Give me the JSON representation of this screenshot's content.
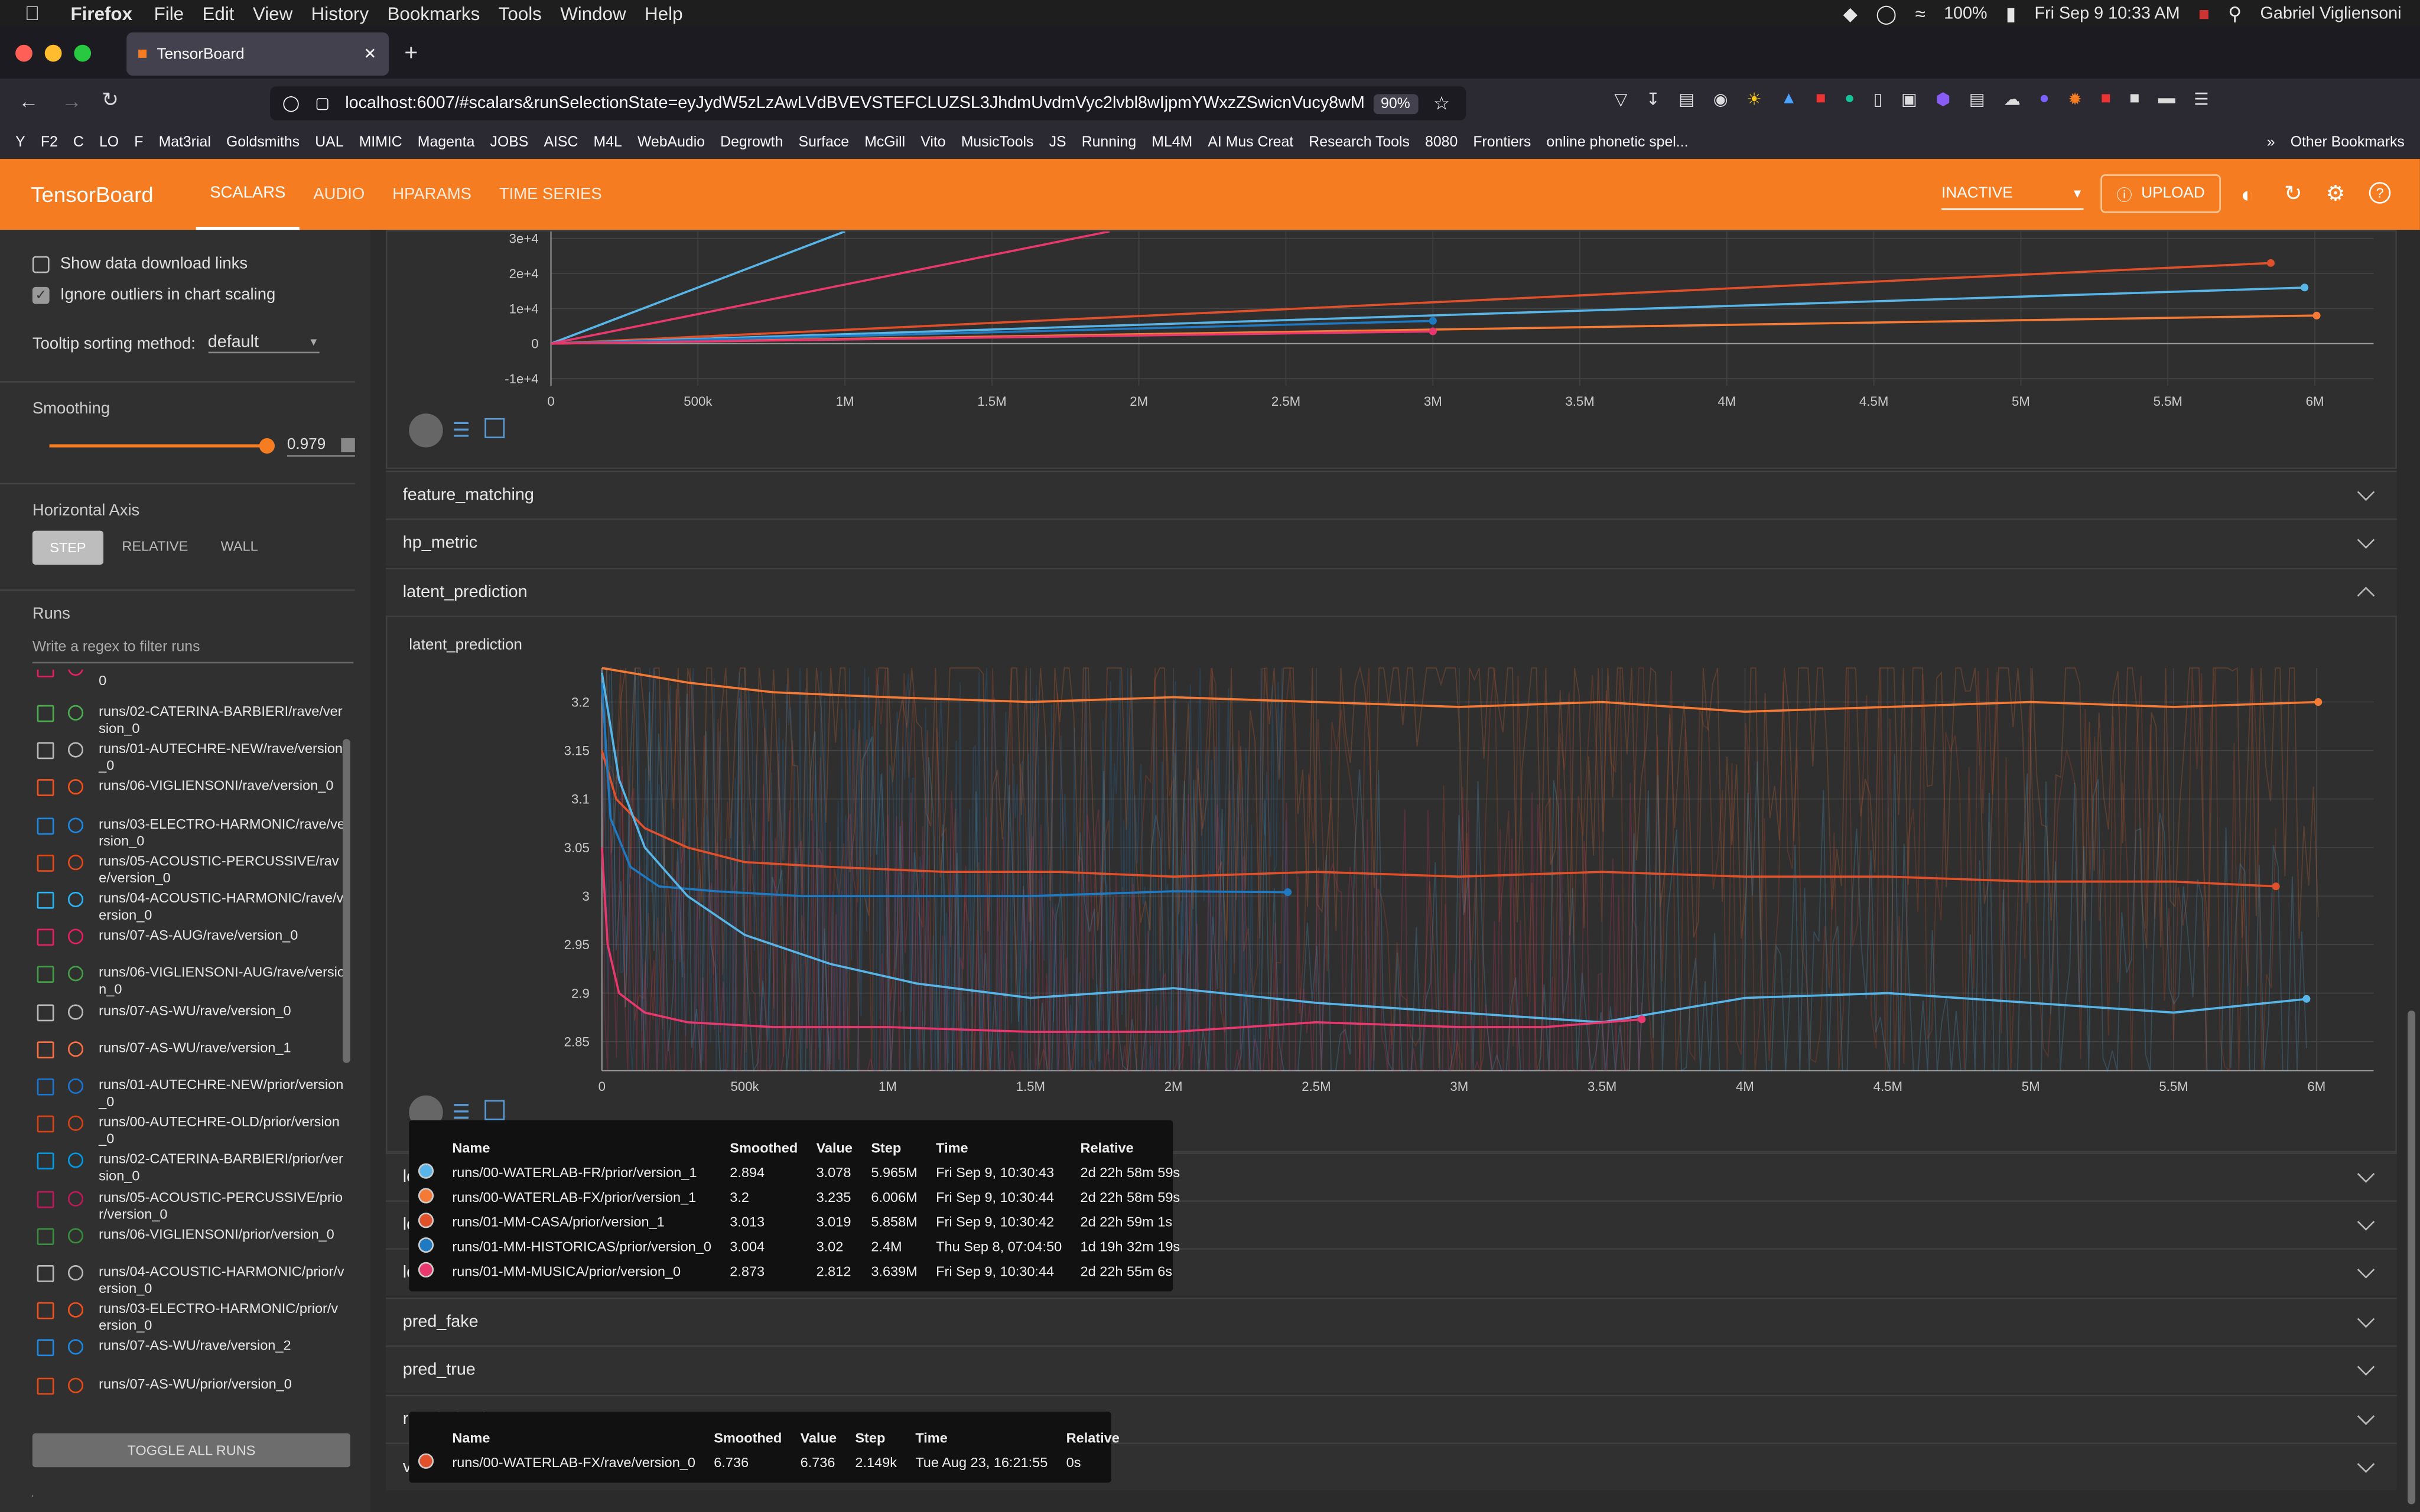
{
  "menubar": {
    "app": "Firefox",
    "items": [
      "File",
      "Edit",
      "View",
      "History",
      "Bookmarks",
      "Tools",
      "Window",
      "Help"
    ],
    "battery": "100%",
    "datetime": "Fri Sep 9  10:33 AM",
    "user": "Gabriel Vigliensoni"
  },
  "browser": {
    "tab_title": "TensorBoard",
    "url": "localhost:6007/#scalars&runSelectionState=eyJydW5zLzAwLVdBVEVSTEFCLUZSL3JhdmUvdmVyc2lvbl8wIjpmYWxzZSwicnVucy8wMC",
    "zoom": "90%",
    "bookmarks": [
      "Y",
      "F2",
      "C",
      "LO",
      "F",
      "Mat3rial",
      "Goldsmiths",
      "UAL",
      "MIMIC",
      "Magenta",
      "JOBS",
      "AISC",
      "M4L",
      "WebAudio",
      "Degrowth",
      "Surface",
      "McGill",
      "Vito",
      "MusicTools",
      "JS",
      "Running",
      "ML4M",
      "AI Mus Creat",
      "Research Tools",
      "8080",
      "Frontiers",
      "online phonetic spel...",
      "Other Bookmarks"
    ]
  },
  "tb": {
    "title": "TensorBoard",
    "tabs": [
      "SCALARS",
      "AUDIO",
      "HPARAMS",
      "TIME SERIES"
    ],
    "status": "INACTIVE",
    "upload": "UPLOAD"
  },
  "sidebar": {
    "show_download": "Show data download links",
    "ignore_outliers": "Ignore outliers in chart scaling",
    "tooltip_label": "Tooltip sorting method:",
    "tooltip_value": "default",
    "smoothing_label": "Smoothing",
    "smoothing_value": "0.979",
    "smoothing_level": 0.979,
    "haxis_label": "Horizontal Axis",
    "haxis_options": [
      "STEP",
      "RELATIVE",
      "WALL"
    ],
    "runs_label": "Runs",
    "runs_placeholder": "Write a regex to filter runs",
    "runs_cutoff": "0",
    "runs": [
      {
        "name": "runs/02-CATERINA-BARBIERI/rave/version_0",
        "color": "#4caf50"
      },
      {
        "name": "runs/01-AUTECHRE-NEW/rave/version_0",
        "color": "#bbbbbb"
      },
      {
        "name": "runs/06-VIGLIENSONI/rave/version_0",
        "color": "#f4511e"
      },
      {
        "name": "runs/03-ELECTRO-HARMONIC/rave/version_0",
        "color": "#1e88e5"
      },
      {
        "name": "runs/05-ACOUSTIC-PERCUSSIVE/rave/version_0",
        "color": "#e64a19"
      },
      {
        "name": "runs/04-ACOUSTIC-HARMONIC/rave/version_0",
        "color": "#29b6f6"
      },
      {
        "name": "runs/07-AS-AUG/rave/version_0",
        "color": "#e91e63"
      },
      {
        "name": "runs/06-VIGLIENSONI-AUG/rave/version_0",
        "color": "#43a047"
      },
      {
        "name": "runs/07-AS-WU/rave/version_0",
        "color": "#bbbbbb"
      },
      {
        "name": "runs/07-AS-WU/rave/version_1",
        "color": "#ff7043"
      },
      {
        "name": "runs/01-AUTECHRE-NEW/prior/version_0",
        "color": "#1976d2"
      },
      {
        "name": "runs/00-AUTECHRE-OLD/prior/version_0",
        "color": "#d84315"
      },
      {
        "name": "runs/02-CATERINA-BARBIERI/prior/version_0",
        "color": "#039be5"
      },
      {
        "name": "runs/05-ACOUSTIC-PERCUSSIVE/prior/version_0",
        "color": "#c2185b"
      },
      {
        "name": "runs/06-VIGLIENSONI/prior/version_0",
        "color": "#388e3c"
      },
      {
        "name": "runs/04-ACOUSTIC-HARMONIC/prior/version_0",
        "color": "#bbbbbb"
      },
      {
        "name": "runs/03-ELECTRO-HARMONIC/prior/version_0",
        "color": "#f4511e"
      },
      {
        "name": "runs/07-AS-WU/rave/version_2",
        "color": "#1e88e5"
      },
      {
        "name": "runs/07-AS-WU/prior/version_0",
        "color": "#e64a19"
      }
    ],
    "toggle_all": "TOGGLE ALL RUNS"
  },
  "sections": {
    "feature_matching": "feature_matching",
    "hp_metric": "hp_metric",
    "latent_prediction": "latent_prediction",
    "chart_title": "latent_prediction",
    "pred_fake": "pred_fake",
    "pred_true": "pred_true",
    "regularization": "regularization",
    "validation": "validation",
    "loss_a": "lo",
    "loss_b": "lo",
    "loss_c": "lo"
  },
  "colors": {
    "accent": "#f57c21",
    "blue": "#58b5e8",
    "orange": "#f47a36",
    "red": "#e0502b",
    "darkblue": "#1f7ac2",
    "pink": "#e8386e"
  },
  "chart_data": [
    {
      "type": "line",
      "title": "",
      "x_ticks": [
        "0",
        "500k",
        "1M",
        "1.5M",
        "2M",
        "2.5M",
        "3M",
        "3.5M",
        "4M",
        "4.5M",
        "5M",
        "5.5M",
        "6M"
      ],
      "y_ticks": [
        "3e+4",
        "2e+4",
        "1e+4",
        "0",
        "-1e+4"
      ],
      "xlim": [
        0,
        6200000
      ],
      "ylim": [
        -12000,
        32000
      ],
      "series": [
        {
          "color": "#e0502b",
          "x": [
            0,
            5850000
          ],
          "y": [
            0,
            23000
          ]
        },
        {
          "color": "#58b5e8",
          "x": [
            0,
            5965000
          ],
          "y": [
            0,
            16000
          ]
        },
        {
          "color": "#f47a36",
          "x": [
            0,
            6006000
          ],
          "y": [
            0,
            8000
          ]
        },
        {
          "color": "#1f7ac2",
          "x": [
            0,
            3000000
          ],
          "y": [
            0,
            6500
          ]
        },
        {
          "color": "#e8386e",
          "x": [
            0,
            3000000
          ],
          "y": [
            0,
            3500
          ]
        },
        {
          "color": "#58b5e8",
          "x": [
            0,
            1000000
          ],
          "y": [
            0,
            40000
          ]
        },
        {
          "color": "#e8386e",
          "x": [
            0,
            1900000
          ],
          "y": [
            0,
            36000
          ]
        }
      ]
    },
    {
      "type": "line",
      "title": "latent_prediction",
      "x_ticks": [
        "0",
        "500k",
        "1M",
        "1.5M",
        "2M",
        "2.5M",
        "3M",
        "3.5M",
        "4M",
        "4.5M",
        "5M",
        "5.5M",
        "6M"
      ],
      "y_ticks": [
        "3.2",
        "3.15",
        "3.1",
        "3.05",
        "3",
        "2.95",
        "2.9",
        "2.85"
      ],
      "xlim": [
        0,
        6200000
      ],
      "ylim": [
        2.82,
        3.235
      ],
      "series": [
        {
          "name": "runs/00-WATERLAB-FX/prior/version_1",
          "color": "#f47a36",
          "x": [
            0,
            100000,
            300000,
            600000,
            1000000,
            1500000,
            2000000,
            2500000,
            3000000,
            3500000,
            4000000,
            4500000,
            5000000,
            5500000,
            6006000
          ],
          "y": [
            3.24,
            3.23,
            3.22,
            3.21,
            3.205,
            3.2,
            3.205,
            3.2,
            3.195,
            3.2,
            3.19,
            3.195,
            3.2,
            3.195,
            3.2
          ]
        },
        {
          "name": "runs/01-MM-CASA/prior/version_1",
          "color": "#e0502b",
          "x": [
            0,
            50000,
            150000,
            300000,
            500000,
            800000,
            1200000,
            1600000,
            2000000,
            2500000,
            3000000,
            3500000,
            4000000,
            4500000,
            5000000,
            5500000,
            5858000
          ],
          "y": [
            3.15,
            3.1,
            3.07,
            3.05,
            3.035,
            3.03,
            3.025,
            3.025,
            3.02,
            3.025,
            3.02,
            3.025,
            3.02,
            3.02,
            3.015,
            3.015,
            3.01
          ]
        },
        {
          "name": "runs/01-MM-HISTORICAS/prior/version_0",
          "color": "#1f7ac2",
          "x": [
            0,
            30000,
            100000,
            200000,
            400000,
            700000,
            1000000,
            1500000,
            2000000,
            2400000
          ],
          "y": [
            3.22,
            3.08,
            3.03,
            3.01,
            3.005,
            3.0,
            3.0,
            3.0,
            3.005,
            3.004
          ]
        },
        {
          "name": "runs/00-WATERLAB-FR/prior/version_1",
          "color": "#58b5e8",
          "x": [
            0,
            60000,
            150000,
            300000,
            500000,
            800000,
            1100000,
            1500000,
            2000000,
            2500000,
            3000000,
            3500000,
            4000000,
            4500000,
            5000000,
            5500000,
            5965000
          ],
          "y": [
            3.23,
            3.12,
            3.05,
            3.0,
            2.96,
            2.93,
            2.91,
            2.895,
            2.905,
            2.89,
            2.88,
            2.87,
            2.895,
            2.9,
            2.89,
            2.88,
            2.894
          ]
        },
        {
          "name": "runs/01-MM-MUSICA/prior/version_0",
          "color": "#e8386e",
          "x": [
            0,
            20000,
            60000,
            150000,
            300000,
            600000,
            1000000,
            1500000,
            2000000,
            2500000,
            3000000,
            3300000,
            3639000
          ],
          "y": [
            3.05,
            2.95,
            2.9,
            2.88,
            2.87,
            2.865,
            2.865,
            2.86,
            2.86,
            2.87,
            2.865,
            2.865,
            2.873
          ]
        }
      ]
    }
  ],
  "tooltip1": {
    "headers": [
      "Name",
      "Smoothed",
      "Value",
      "Step",
      "Time",
      "Relative"
    ],
    "rows": [
      {
        "color": "#58b5e8",
        "name": "runs/00-WATERLAB-FR/prior/version_1",
        "smoothed": "2.894",
        "value": "3.078",
        "step": "5.965M",
        "time": "Fri Sep 9, 10:30:43",
        "relative": "2d 22h 58m 59s"
      },
      {
        "color": "#f47a36",
        "name": "runs/00-WATERLAB-FX/prior/version_1",
        "smoothed": "3.2",
        "value": "3.235",
        "step": "6.006M",
        "time": "Fri Sep 9, 10:30:44",
        "relative": "2d 22h 58m 59s"
      },
      {
        "color": "#e0502b",
        "name": "runs/01-MM-CASA/prior/version_1",
        "smoothed": "3.013",
        "value": "3.019",
        "step": "5.858M",
        "time": "Fri Sep 9, 10:30:42",
        "relative": "2d 22h 59m 1s"
      },
      {
        "color": "#1f7ac2",
        "name": "runs/01-MM-HISTORICAS/prior/version_0",
        "smoothed": "3.004",
        "value": "3.02",
        "step": "2.4M",
        "time": "Thu Sep 8, 07:04:50",
        "relative": "1d 19h 32m 19s"
      },
      {
        "color": "#e8386e",
        "name": "runs/01-MM-MUSICA/prior/version_0",
        "smoothed": "2.873",
        "value": "2.812",
        "step": "3.639M",
        "time": "Fri Sep 9, 10:30:44",
        "relative": "2d 22h 55m 6s"
      }
    ]
  },
  "tooltip2": {
    "headers": [
      "Name",
      "Smoothed",
      "Value",
      "Step",
      "Time",
      "Relative"
    ],
    "rows": [
      {
        "color": "#e0502b",
        "name": "runs/00-WATERLAB-FX/rave/version_0",
        "smoothed": "6.736",
        "value": "6.736",
        "step": "2.149k",
        "time": "Tue Aug 23, 16:21:55",
        "relative": "0s"
      }
    ]
  }
}
